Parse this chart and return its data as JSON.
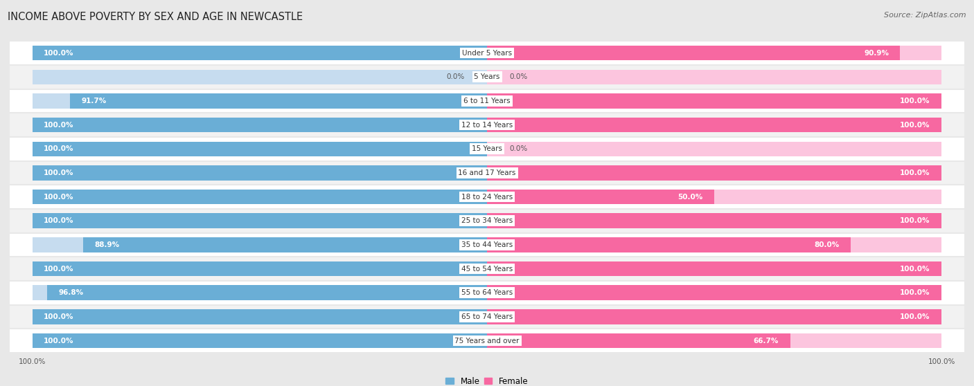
{
  "title": "INCOME ABOVE POVERTY BY SEX AND AGE IN NEWCASTLE",
  "source": "Source: ZipAtlas.com",
  "categories": [
    "Under 5 Years",
    "5 Years",
    "6 to 11 Years",
    "12 to 14 Years",
    "15 Years",
    "16 and 17 Years",
    "18 to 24 Years",
    "25 to 34 Years",
    "35 to 44 Years",
    "45 to 54 Years",
    "55 to 64 Years",
    "65 to 74 Years",
    "75 Years and over"
  ],
  "male": [
    100.0,
    0.0,
    91.7,
    100.0,
    100.0,
    100.0,
    100.0,
    100.0,
    88.9,
    100.0,
    96.8,
    100.0,
    100.0
  ],
  "female": [
    90.9,
    0.0,
    100.0,
    100.0,
    0.0,
    100.0,
    50.0,
    100.0,
    80.0,
    100.0,
    100.0,
    100.0,
    66.7
  ],
  "male_color": "#6aaed6",
  "female_color": "#f768a1",
  "male_color_light": "#c6dcef",
  "female_color_light": "#fcc5de",
  "bg_color": "#e8e8e8",
  "row_color_odd": "#ffffff",
  "row_color_even": "#f2f2f2",
  "title_fontsize": 10.5,
  "source_fontsize": 8,
  "label_fontsize": 7.5,
  "bar_label_fontsize": 7.5,
  "legend_fontsize": 8.5,
  "bar_height": 0.62,
  "max_val": 100
}
